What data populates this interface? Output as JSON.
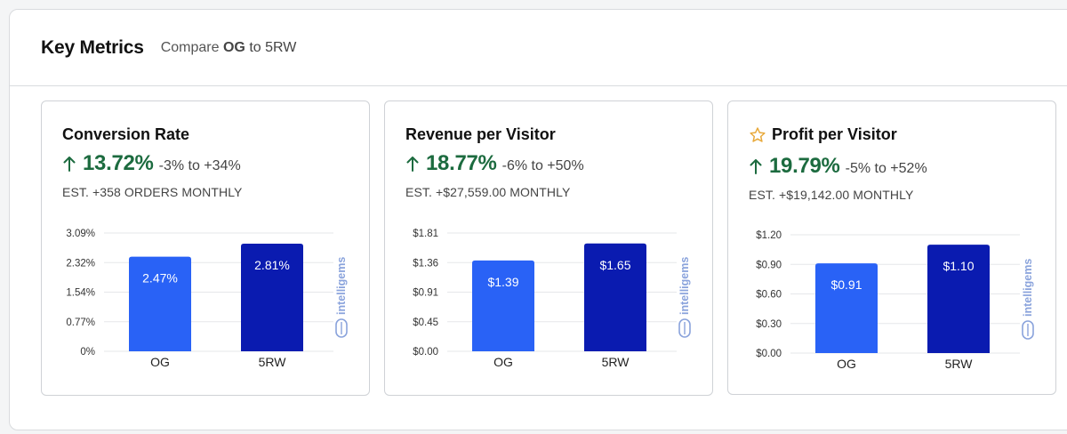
{
  "header": {
    "title": "Key Metrics",
    "compare_prefix": "Compare",
    "compare_a": "OG",
    "compare_to": "to",
    "compare_b": "5RW"
  },
  "colors": {
    "og_bar": "#2962f6",
    "variant_bar": "#0a1bb0",
    "lift_green": "#1c6b3f",
    "star": "#e8a93b"
  },
  "watermark": "intelligems",
  "cards": [
    {
      "title": "Conversion Rate",
      "starred": false,
      "lift": "13.72%",
      "range": "-3% to +34%",
      "estimate": "EST. +358 ORDERS MONTHLY"
    },
    {
      "title": "Revenue per Visitor",
      "starred": false,
      "lift": "18.77%",
      "range": "-6% to +50%",
      "estimate": "EST. +$27,559.00 MONTHLY"
    },
    {
      "title": "Profit per Visitor",
      "starred": true,
      "lift": "19.79%",
      "range": "-5% to +52%",
      "estimate": "EST. +$19,142.00 MONTHLY"
    }
  ],
  "chart_data": [
    {
      "type": "bar",
      "categories": [
        "OG",
        "5RW"
      ],
      "values": [
        2.47,
        2.81
      ],
      "value_labels": [
        "2.47%",
        "2.81%"
      ],
      "yticks": [
        "0%",
        "0.77%",
        "1.54%",
        "2.32%",
        "3.09%"
      ],
      "ylim": [
        0,
        3.09
      ],
      "grid": true
    },
    {
      "type": "bar",
      "categories": [
        "OG",
        "5RW"
      ],
      "values": [
        1.39,
        1.65
      ],
      "value_labels": [
        "$1.39",
        "$1.65"
      ],
      "yticks": [
        "$0.00",
        "$0.45",
        "$0.91",
        "$1.36",
        "$1.81"
      ],
      "ylim": [
        0,
        1.81
      ],
      "grid": true
    },
    {
      "type": "bar",
      "categories": [
        "OG",
        "5RW"
      ],
      "values": [
        0.91,
        1.1
      ],
      "value_labels": [
        "$0.91",
        "$1.10"
      ],
      "yticks": [
        "$0.00",
        "$0.30",
        "$0.60",
        "$0.90",
        "$1.20"
      ],
      "ylim": [
        0,
        1.2
      ],
      "grid": true
    }
  ]
}
